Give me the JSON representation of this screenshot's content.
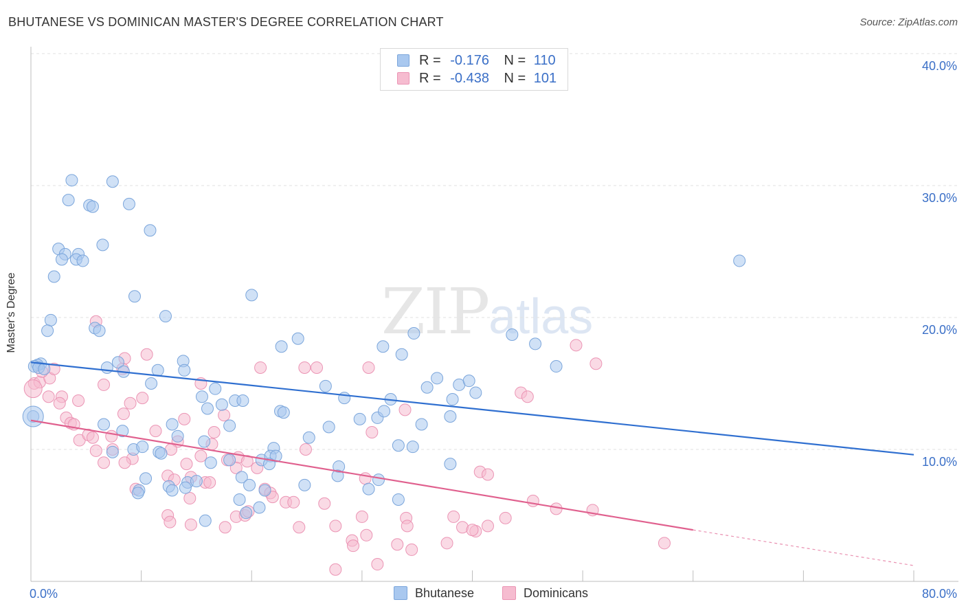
{
  "header": {
    "title": "BHUTANESE VS DOMINICAN MASTER'S DEGREE CORRELATION CHART",
    "source": "Source: ZipAtlas.com"
  },
  "watermark": {
    "zip": "ZIP",
    "atlas": "atlas"
  },
  "legend_top": {
    "rows": [
      {
        "r_label": "R =",
        "r_value": "-0.176",
        "n_label": "N =",
        "n_value": "110",
        "color": "#8fb6e8"
      },
      {
        "r_label": "R =",
        "r_value": "-0.438",
        "n_label": "N =",
        "n_value": "101",
        "color": "#f3a7c0"
      }
    ]
  },
  "legend_bottom": {
    "items": [
      "Bhutanese",
      "Dominicans"
    ]
  },
  "colors": {
    "blue_fill": "#a9c8ef",
    "blue_stroke": "#7aa5db",
    "blue_line": "#2f6fd0",
    "pink_fill": "#f6bcd0",
    "pink_stroke": "#eb94b4",
    "pink_line": "#e0608e",
    "grid": "#e1e1e1",
    "tick_label": "#3a6fc7"
  },
  "chart_data": {
    "type": "scatter",
    "title": "BHUTANESE VS DOMINICAN MASTER'S DEGREE CORRELATION CHART",
    "xlabel": "",
    "ylabel": "Master's Degree",
    "xlim": [
      0,
      80
    ],
    "ylim": [
      0,
      40
    ],
    "x_tick_labels": [
      "0.0%",
      "80.0%"
    ],
    "y_ticks": [
      10,
      20,
      30,
      40
    ],
    "y_tick_labels": [
      "10.0%",
      "20.0%",
      "30.0%",
      "40.0%"
    ],
    "legend": [
      "Bhutanese",
      "Dominicans"
    ],
    "series": [
      {
        "name": "Bhutanese",
        "r": -0.176,
        "n": 110,
        "trend": {
          "x0": 0,
          "y0": 16.6,
          "x1": 80,
          "y1": 9.6
        },
        "points": [
          [
            3.7,
            30.4
          ],
          [
            7.4,
            30.3
          ],
          [
            3.4,
            28.9
          ],
          [
            5.3,
            28.5
          ],
          [
            5.6,
            28.4
          ],
          [
            8.9,
            28.6
          ],
          [
            10.8,
            26.6
          ],
          [
            6.5,
            25.5
          ],
          [
            2.5,
            25.2
          ],
          [
            3.1,
            24.8
          ],
          [
            4.3,
            24.8
          ],
          [
            2.8,
            24.4
          ],
          [
            4.1,
            24.4
          ],
          [
            4.7,
            24.3
          ],
          [
            2.1,
            23.1
          ],
          [
            9.4,
            21.6
          ],
          [
            20.0,
            21.7
          ],
          [
            12.2,
            20.1
          ],
          [
            1.8,
            19.8
          ],
          [
            1.5,
            19.0
          ],
          [
            5.8,
            19.2
          ],
          [
            6.2,
            19.0
          ],
          [
            24.2,
            18.4
          ],
          [
            22.7,
            17.8
          ],
          [
            31.9,
            17.8
          ],
          [
            34.7,
            18.8
          ],
          [
            43.6,
            18.7
          ],
          [
            45.7,
            18.0
          ],
          [
            0.9,
            16.5
          ],
          [
            0.6,
            16.4
          ],
          [
            0.3,
            16.3
          ],
          [
            0.7,
            16.2
          ],
          [
            1.2,
            16.1
          ],
          [
            7.9,
            16.6
          ],
          [
            6.9,
            16.2
          ],
          [
            8.4,
            15.9
          ],
          [
            11.5,
            16.0
          ],
          [
            13.8,
            16.7
          ],
          [
            13.9,
            16.0
          ],
          [
            33.6,
            17.2
          ],
          [
            47.6,
            16.3
          ],
          [
            10.9,
            15.0
          ],
          [
            16.7,
            14.6
          ],
          [
            26.7,
            14.8
          ],
          [
            35.9,
            14.7
          ],
          [
            36.8,
            15.4
          ],
          [
            38.8,
            14.9
          ],
          [
            39.7,
            15.2
          ],
          [
            40.3,
            14.3
          ],
          [
            15.5,
            14.0
          ],
          [
            17.3,
            13.4
          ],
          [
            18.5,
            13.7
          ],
          [
            19.2,
            13.7
          ],
          [
            28.4,
            13.9
          ],
          [
            32.6,
            13.8
          ],
          [
            38.2,
            13.8
          ],
          [
            16.0,
            13.1
          ],
          [
            22.6,
            12.9
          ],
          [
            22.9,
            12.8
          ],
          [
            29.8,
            12.3
          ],
          [
            31.4,
            12.4
          ],
          [
            32.0,
            12.9
          ],
          [
            38.0,
            12.5
          ],
          [
            6.6,
            11.9
          ],
          [
            12.8,
            11.9
          ],
          [
            18.0,
            11.8
          ],
          [
            27.0,
            11.7
          ],
          [
            35.4,
            11.9
          ],
          [
            8.3,
            11.4
          ],
          [
            13.3,
            11.0
          ],
          [
            15.7,
            10.6
          ],
          [
            25.2,
            10.9
          ],
          [
            9.3,
            10.0
          ],
          [
            10.1,
            10.2
          ],
          [
            11.6,
            9.8
          ],
          [
            22.0,
            10.1
          ],
          [
            33.3,
            10.3
          ],
          [
            34.6,
            10.2
          ],
          [
            7.4,
            9.8
          ],
          [
            11.8,
            9.7
          ],
          [
            18.0,
            9.2
          ],
          [
            20.9,
            9.2
          ],
          [
            21.7,
            9.5
          ],
          [
            22.2,
            9.5
          ],
          [
            38.0,
            8.9
          ],
          [
            27.9,
            8.7
          ],
          [
            21.6,
            8.9
          ],
          [
            10.4,
            7.8
          ],
          [
            14.2,
            7.5
          ],
          [
            15.0,
            7.6
          ],
          [
            19.1,
            7.9
          ],
          [
            27.8,
            8.0
          ],
          [
            31.5,
            7.7
          ],
          [
            9.8,
            6.9
          ],
          [
            12.5,
            7.2
          ],
          [
            12.8,
            6.9
          ],
          [
            14.0,
            7.1
          ],
          [
            19.8,
            7.3
          ],
          [
            24.8,
            7.3
          ],
          [
            21.2,
            6.9
          ],
          [
            30.6,
            7.0
          ],
          [
            9.7,
            6.7
          ],
          [
            33.3,
            6.2
          ],
          [
            18.9,
            6.2
          ],
          [
            20.7,
            5.6
          ],
          [
            19.5,
            5.2
          ],
          [
            15.8,
            4.6
          ],
          [
            16.3,
            9.0
          ],
          [
            0.2,
            12.5
          ],
          [
            64.2,
            24.3
          ]
        ]
      },
      {
        "name": "Dominicans",
        "r": -0.438,
        "n": 101,
        "trend": {
          "x0": 0,
          "y0": 12.2,
          "x1": 60,
          "y1": 3.9
        },
        "trend_dashed": {
          "x0": 60,
          "y0": 3.9,
          "x1": 80,
          "y1": 1.2
        },
        "points": [
          [
            0.3,
            15.0
          ],
          [
            0.8,
            15.1
          ],
          [
            1.7,
            15.4
          ],
          [
            1.0,
            15.9
          ],
          [
            2.1,
            16.1
          ],
          [
            5.9,
            19.7
          ],
          [
            8.5,
            16.9
          ],
          [
            10.5,
            17.2
          ],
          [
            8.3,
            16.1
          ],
          [
            6.6,
            14.9
          ],
          [
            15.4,
            15.0
          ],
          [
            20.8,
            16.2
          ],
          [
            24.8,
            16.2
          ],
          [
            25.9,
            16.2
          ],
          [
            30.6,
            16.2
          ],
          [
            49.4,
            17.9
          ],
          [
            51.2,
            16.5
          ],
          [
            1.6,
            14.0
          ],
          [
            2.8,
            14.0
          ],
          [
            4.3,
            13.7
          ],
          [
            9.0,
            13.5
          ],
          [
            10.1,
            13.9
          ],
          [
            2.6,
            13.5
          ],
          [
            8.4,
            12.7
          ],
          [
            13.9,
            12.3
          ],
          [
            17.5,
            12.6
          ],
          [
            3.2,
            12.4
          ],
          [
            3.6,
            12.0
          ],
          [
            3.9,
            11.9
          ],
          [
            11.3,
            11.4
          ],
          [
            16.6,
            11.3
          ],
          [
            30.9,
            11.3
          ],
          [
            33.9,
            13.0
          ],
          [
            44.4,
            14.3
          ],
          [
            45.0,
            14.0
          ],
          [
            4.4,
            10.7
          ],
          [
            5.2,
            11.1
          ],
          [
            5.6,
            10.9
          ],
          [
            7.3,
            11.0
          ],
          [
            13.3,
            10.6
          ],
          [
            16.4,
            10.4
          ],
          [
            5.9,
            9.9
          ],
          [
            7.4,
            10.0
          ],
          [
            12.7,
            10.0
          ],
          [
            9.2,
            9.3
          ],
          [
            15.4,
            9.5
          ],
          [
            17.8,
            9.2
          ],
          [
            18.8,
            9.4
          ],
          [
            19.6,
            9.1
          ],
          [
            24.9,
            10.0
          ],
          [
            6.6,
            9.0
          ],
          [
            8.5,
            9.0
          ],
          [
            14.1,
            8.9
          ],
          [
            18.6,
            8.6
          ],
          [
            20.5,
            8.6
          ],
          [
            40.7,
            8.3
          ],
          [
            41.4,
            8.1
          ],
          [
            12.4,
            8.0
          ],
          [
            14.5,
            7.9
          ],
          [
            13.0,
            7.7
          ],
          [
            15.8,
            7.5
          ],
          [
            16.2,
            7.5
          ],
          [
            30.3,
            7.8
          ],
          [
            9.5,
            7.0
          ],
          [
            21.2,
            7.0
          ],
          [
            21.7,
            6.7
          ],
          [
            21.9,
            6.4
          ],
          [
            23.1,
            6.0
          ],
          [
            23.8,
            6.0
          ],
          [
            26.6,
            5.9
          ],
          [
            14.4,
            6.3
          ],
          [
            45.5,
            6.1
          ],
          [
            50.9,
            5.4
          ],
          [
            47.6,
            5.5
          ],
          [
            12.4,
            5.0
          ],
          [
            18.6,
            4.9
          ],
          [
            19.4,
            5.0
          ],
          [
            19.7,
            5.3
          ],
          [
            30.0,
            4.9
          ],
          [
            34.0,
            4.8
          ],
          [
            38.3,
            4.9
          ],
          [
            43.0,
            4.8
          ],
          [
            12.6,
            4.5
          ],
          [
            14.5,
            4.3
          ],
          [
            17.6,
            4.1
          ],
          [
            24.3,
            4.1
          ],
          [
            27.6,
            4.2
          ],
          [
            34.1,
            4.2
          ],
          [
            39.1,
            4.1
          ],
          [
            40.3,
            3.8
          ],
          [
            41.4,
            4.2
          ],
          [
            30.4,
            3.5
          ],
          [
            40.0,
            3.9
          ],
          [
            29.1,
            3.1
          ],
          [
            29.2,
            2.7
          ],
          [
            33.2,
            2.8
          ],
          [
            37.7,
            2.9
          ],
          [
            34.5,
            2.4
          ],
          [
            57.4,
            2.9
          ],
          [
            31.4,
            1.3
          ],
          [
            27.6,
            0.9
          ]
        ]
      }
    ]
  }
}
